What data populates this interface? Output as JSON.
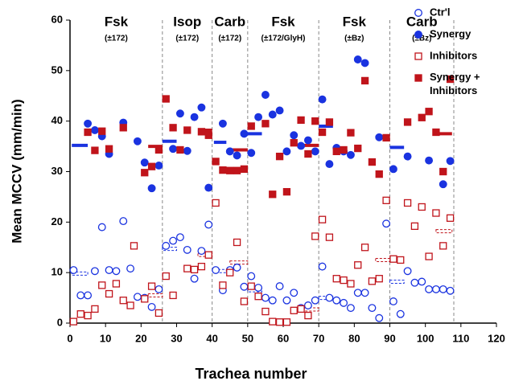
{
  "chart_data": {
    "type": "scatter",
    "x_label": "Trachea number",
    "y_label": "Mean MCCV (mm/min)",
    "xlim": [
      0,
      120
    ],
    "xticks": [
      0,
      10,
      20,
      30,
      40,
      50,
      60,
      70,
      80,
      90,
      100,
      110,
      120
    ],
    "ylim": [
      0,
      60
    ],
    "yticks": [
      0,
      10,
      20,
      30,
      40,
      50,
      60
    ],
    "legend": "upper right",
    "dividers": [
      26,
      40,
      50,
      70,
      90,
      108
    ],
    "groups": [
      {
        "name": "Fsk",
        "sub": "(±172)"
      },
      {
        "name": "Isop",
        "sub": "(±172)"
      },
      {
        "name": "Carb",
        "sub": "(±172)"
      },
      {
        "name": "Fsk",
        "sub": "(±172/GlyH)"
      },
      {
        "name": "Fsk",
        "sub": "(±Bz)"
      },
      {
        "name": "Carb",
        "sub": "(±Bz)"
      }
    ],
    "series": [
      {
        "name": "Ctr'l",
        "color": "#1a33e0",
        "marker": "circle",
        "filled": false,
        "x": [
          1,
          3,
          5,
          7,
          9,
          11,
          13,
          15,
          17,
          19,
          21,
          23,
          25,
          27,
          29,
          31,
          33,
          35,
          37,
          39,
          41,
          43,
          45,
          47,
          49,
          51,
          53,
          55,
          57,
          59,
          61,
          63,
          65,
          67,
          69,
          71,
          73,
          75,
          77,
          79,
          81,
          83,
          85,
          87,
          89,
          91,
          93,
          95,
          97,
          99,
          101,
          103,
          105,
          107
        ],
        "values": [
          10.5,
          5.5,
          5.5,
          10.3,
          19,
          10.5,
          10.3,
          20.2,
          10.8,
          5.2,
          5,
          3.2,
          6.7,
          15.3,
          16.3,
          17,
          14.5,
          8.8,
          14.3,
          19.5,
          10.5,
          6.5,
          10.5,
          11,
          7.2,
          9.3,
          7,
          5,
          4.5,
          7.3,
          4.5,
          6,
          3,
          3.5,
          4.5,
          11.2,
          5,
          4.5,
          4,
          3,
          6,
          6,
          3,
          1,
          19.7,
          4.3,
          1.8,
          10.3,
          8,
          8.2,
          6.7,
          6.7,
          6.7,
          6.4
        ]
      },
      {
        "name": "Synergy",
        "color": "#1a33e0",
        "marker": "circle",
        "filled": true,
        "x": [
          5,
          7,
          9,
          11,
          15,
          19,
          21,
          23,
          25,
          29,
          31,
          33,
          35,
          37,
          39,
          43,
          45,
          47,
          49,
          51,
          53,
          55,
          57,
          59,
          61,
          63,
          65,
          67,
          69,
          71,
          73,
          75,
          77,
          79,
          81,
          83,
          87,
          91,
          95,
          101,
          105,
          107
        ],
        "values": [
          39.5,
          38.2,
          37,
          33.5,
          39.7,
          36,
          31.8,
          26.7,
          31.2,
          34.5,
          41.5,
          34.1,
          40.8,
          42.7,
          26.8,
          39.5,
          34,
          33.2,
          37.5,
          33.7,
          40.8,
          45.2,
          41.3,
          42.1,
          34,
          37.2,
          35.1,
          36.2,
          34,
          44.3,
          31.5,
          34.7,
          34,
          33.3,
          52.2,
          51.5,
          36.8,
          30.5,
          33,
          32.2,
          27.5,
          32.1
        ]
      },
      {
        "name": "Inhibitors",
        "color": "#c0141b",
        "marker": "square",
        "filled": false,
        "x": [
          1,
          3,
          5,
          7,
          9,
          11,
          13,
          15,
          17,
          18,
          21,
          23,
          25,
          27,
          29,
          33,
          35,
          37,
          39,
          41,
          43,
          45,
          47,
          49,
          51,
          53,
          55,
          57,
          59,
          61,
          63,
          65,
          67,
          69,
          71,
          73,
          75,
          77,
          79,
          81,
          83,
          85,
          87,
          89,
          91,
          93,
          95,
          97,
          99,
          101,
          103,
          105,
          107
        ],
        "values": [
          0.3,
          1.8,
          1.5,
          2.8,
          7.5,
          5.8,
          7.8,
          4.5,
          3.5,
          15.3,
          4.8,
          7.3,
          2,
          9.3,
          5.5,
          10.8,
          10.6,
          11.2,
          13.5,
          23.8,
          7.5,
          10,
          16,
          4.3,
          7.3,
          5.3,
          2.3,
          0.3,
          0.2,
          0.2,
          2.5,
          2.8,
          1.5,
          17.2,
          20.5,
          17,
          8.8,
          8.5,
          7.8,
          11.5,
          15,
          8.3,
          8.8,
          24.3,
          12.7,
          12.5,
          23.8,
          19.2,
          23,
          13.2,
          21.8,
          15.3,
          20.8
        ]
      },
      {
        "name": "Synergy + Inhibitors",
        "color": "#c0141b",
        "marker": "square",
        "filled": true,
        "x": [
          5,
          7,
          9,
          11,
          15,
          21,
          23,
          25,
          27,
          29,
          31,
          33,
          37,
          39,
          41,
          43,
          45,
          47,
          49,
          51,
          55,
          57,
          59,
          61,
          63,
          65,
          67,
          69,
          71,
          73,
          75,
          77,
          79,
          81,
          83,
          85,
          87,
          89,
          95,
          99,
          101,
          103,
          105,
          107
        ],
        "values": [
          37.8,
          34.2,
          38,
          34.5,
          38.7,
          29.8,
          31,
          34.3,
          44.4,
          38.7,
          34.3,
          38.2,
          37.9,
          37.2,
          32,
          30.3,
          30.2,
          30.2,
          30.5,
          39,
          39.5,
          25.5,
          33,
          26,
          35.7,
          40.2,
          33.5,
          40,
          37.8,
          39.8,
          34,
          34.3,
          37.7,
          34.6,
          48,
          31.9,
          29.5,
          36.7,
          39.8,
          40.7,
          41.9,
          37.8,
          30,
          48.3
        ]
      }
    ],
    "mean_lines": [
      {
        "color": "#1a33e0",
        "dashed": false,
        "x_start": [
          0.5,
          26,
          40.5,
          50,
          70,
          90
        ],
        "x_end": [
          5,
          30,
          44,
          54,
          74,
          94
        ],
        "values": [
          35.2,
          36,
          35.8,
          37.5,
          39,
          34.8
        ]
      },
      {
        "color": "#c0141b",
        "dashed": false,
        "x_start": [
          22,
          36,
          45,
          65,
          86,
          103
        ],
        "x_end": [
          26,
          40,
          50,
          70,
          90,
          107.5
        ],
        "values": [
          35,
          38.2,
          34.3,
          35.2,
          36.7,
          37.5
        ]
      },
      {
        "color": "#1a33e0",
        "dashed": true,
        "x_start": [
          0.5,
          26,
          40.5,
          50,
          70,
          90
        ],
        "x_end": [
          5,
          30,
          44,
          54,
          74,
          94
        ],
        "values": [
          9.8,
          14.7,
          10.3,
          6.5,
          5,
          8.2
        ]
      },
      {
        "color": "#c0141b",
        "dashed": true,
        "x_start": [
          22,
          36,
          45,
          65,
          86,
          103
        ],
        "x_end": [
          26,
          40,
          50,
          70,
          90,
          107.5
        ],
        "values": [
          5.5,
          13.5,
          12,
          2.7,
          12.5,
          18.2
        ]
      }
    ]
  }
}
